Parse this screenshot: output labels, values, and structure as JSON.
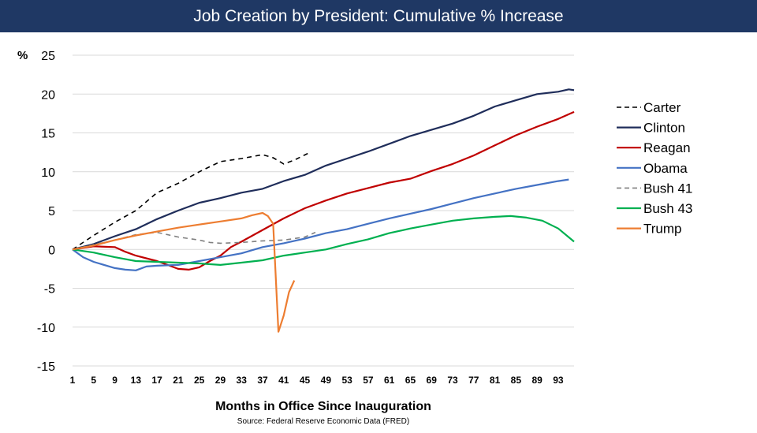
{
  "chart_data": {
    "type": "line",
    "title": "Job Creation by President:  Cumulative % Increase",
    "xlabel": "Months in Office Since Inauguration",
    "ylabel": "%",
    "source": "Source:  Federal Reserve Economic Data (FRED)",
    "xlim": [
      1,
      96
    ],
    "ylim": [
      -15,
      25
    ],
    "x_ticks": [
      "1",
      "5",
      "9",
      "13",
      "17",
      "21",
      "25",
      "29",
      "33",
      "37",
      "41",
      "45",
      "49",
      "53",
      "57",
      "61",
      "65",
      "69",
      "73",
      "77",
      "81",
      "85",
      "89",
      "93"
    ],
    "y_ticks": [
      "25",
      "20",
      "15",
      "10",
      "5",
      "0",
      "-5",
      "-10",
      "-15"
    ],
    "y_tick_values": [
      25,
      20,
      15,
      10,
      5,
      0,
      -5,
      -10,
      -15
    ],
    "grid": true,
    "legend_position": "right",
    "series": [
      {
        "name": "Carter",
        "color": "#000000",
        "dash": true,
        "points": [
          [
            1,
            0
          ],
          [
            5,
            1.8
          ],
          [
            9,
            3.5
          ],
          [
            13,
            5.0
          ],
          [
            17,
            7.3
          ],
          [
            21,
            8.5
          ],
          [
            25,
            10.0
          ],
          [
            29,
            11.3
          ],
          [
            33,
            11.7
          ],
          [
            37,
            12.2
          ],
          [
            39,
            11.8
          ],
          [
            41,
            11.0
          ],
          [
            43,
            11.5
          ],
          [
            46,
            12.5
          ]
        ]
      },
      {
        "name": "Clinton",
        "color": "#1f2d5a",
        "dash": false,
        "points": [
          [
            1,
            0
          ],
          [
            5,
            0.7
          ],
          [
            9,
            1.7
          ],
          [
            13,
            2.6
          ],
          [
            17,
            3.9
          ],
          [
            21,
            5.0
          ],
          [
            25,
            6.0
          ],
          [
            29,
            6.6
          ],
          [
            33,
            7.3
          ],
          [
            37,
            7.8
          ],
          [
            41,
            8.8
          ],
          [
            45,
            9.6
          ],
          [
            49,
            10.8
          ],
          [
            53,
            11.7
          ],
          [
            57,
            12.6
          ],
          [
            61,
            13.6
          ],
          [
            65,
            14.6
          ],
          [
            69,
            15.4
          ],
          [
            73,
            16.2
          ],
          [
            77,
            17.2
          ],
          [
            81,
            18.4
          ],
          [
            85,
            19.2
          ],
          [
            89,
            20.0
          ],
          [
            93,
            20.3
          ],
          [
            95,
            20.6
          ],
          [
            96,
            20.5
          ]
        ]
      },
      {
        "name": "Reagan",
        "color": "#c00000",
        "dash": false,
        "points": [
          [
            1,
            0
          ],
          [
            5,
            0.4
          ],
          [
            9,
            0.3
          ],
          [
            11,
            -0.3
          ],
          [
            13,
            -0.8
          ],
          [
            17,
            -1.5
          ],
          [
            19,
            -2.0
          ],
          [
            21,
            -2.5
          ],
          [
            23,
            -2.6
          ],
          [
            25,
            -2.3
          ],
          [
            27,
            -1.5
          ],
          [
            29,
            -0.8
          ],
          [
            31,
            0.3
          ],
          [
            33,
            1.0
          ],
          [
            37,
            2.5
          ],
          [
            41,
            4.0
          ],
          [
            45,
            5.3
          ],
          [
            49,
            6.3
          ],
          [
            53,
            7.2
          ],
          [
            57,
            7.9
          ],
          [
            61,
            8.6
          ],
          [
            65,
            9.1
          ],
          [
            69,
            10.1
          ],
          [
            73,
            11.0
          ],
          [
            77,
            12.1
          ],
          [
            81,
            13.4
          ],
          [
            85,
            14.7
          ],
          [
            89,
            15.8
          ],
          [
            93,
            16.8
          ],
          [
            96,
            17.7
          ]
        ]
      },
      {
        "name": "Obama",
        "color": "#4472c4",
        "dash": false,
        "points": [
          [
            1,
            0
          ],
          [
            3,
            -1.0
          ],
          [
            5,
            -1.6
          ],
          [
            9,
            -2.4
          ],
          [
            11,
            -2.6
          ],
          [
            13,
            -2.7
          ],
          [
            15,
            -2.2
          ],
          [
            17,
            -2.1
          ],
          [
            21,
            -2.0
          ],
          [
            25,
            -1.5
          ],
          [
            29,
            -1.0
          ],
          [
            33,
            -0.5
          ],
          [
            37,
            0.3
          ],
          [
            41,
            0.8
          ],
          [
            45,
            1.4
          ],
          [
            49,
            2.1
          ],
          [
            53,
            2.6
          ],
          [
            57,
            3.3
          ],
          [
            61,
            4.0
          ],
          [
            65,
            4.6
          ],
          [
            69,
            5.2
          ],
          [
            73,
            5.9
          ],
          [
            77,
            6.6
          ],
          [
            81,
            7.2
          ],
          [
            85,
            7.8
          ],
          [
            89,
            8.3
          ],
          [
            93,
            8.8
          ],
          [
            95,
            9.0
          ]
        ]
      },
      {
        "name": "Bush 41",
        "color": "#808080",
        "dash": true,
        "points": [
          [
            1,
            0
          ],
          [
            5,
            0.6
          ],
          [
            9,
            1.2
          ],
          [
            13,
            1.9
          ],
          [
            17,
            2.2
          ],
          [
            21,
            1.6
          ],
          [
            25,
            1.2
          ],
          [
            27,
            0.9
          ],
          [
            29,
            0.8
          ],
          [
            33,
            0.9
          ],
          [
            37,
            1.1
          ],
          [
            41,
            1.2
          ],
          [
            45,
            1.6
          ],
          [
            47,
            2.2
          ]
        ]
      },
      {
        "name": "Bush 43",
        "color": "#00b050",
        "dash": false,
        "points": [
          [
            1,
            0
          ],
          [
            5,
            -0.4
          ],
          [
            9,
            -1.0
          ],
          [
            13,
            -1.5
          ],
          [
            17,
            -1.6
          ],
          [
            21,
            -1.7
          ],
          [
            25,
            -1.8
          ],
          [
            29,
            -2.0
          ],
          [
            33,
            -1.7
          ],
          [
            37,
            -1.4
          ],
          [
            41,
            -0.8
          ],
          [
            45,
            -0.4
          ],
          [
            49,
            0.0
          ],
          [
            53,
            0.7
          ],
          [
            57,
            1.3
          ],
          [
            61,
            2.1
          ],
          [
            65,
            2.7
          ],
          [
            69,
            3.2
          ],
          [
            73,
            3.7
          ],
          [
            77,
            4.0
          ],
          [
            81,
            4.2
          ],
          [
            84,
            4.3
          ],
          [
            87,
            4.1
          ],
          [
            90,
            3.7
          ],
          [
            93,
            2.7
          ],
          [
            96,
            1.0
          ]
        ]
      },
      {
        "name": "Trump",
        "color": "#ed7d31",
        "dash": false,
        "points": [
          [
            1,
            0
          ],
          [
            5,
            0.5
          ],
          [
            9,
            1.2
          ],
          [
            13,
            1.8
          ],
          [
            17,
            2.3
          ],
          [
            21,
            2.8
          ],
          [
            25,
            3.2
          ],
          [
            29,
            3.6
          ],
          [
            33,
            4.0
          ],
          [
            35,
            4.4
          ],
          [
            37,
            4.7
          ],
          [
            38,
            4.3
          ],
          [
            39,
            3.3
          ],
          [
            40,
            -10.6
          ],
          [
            41,
            -8.5
          ],
          [
            42,
            -5.5
          ],
          [
            43,
            -4.0
          ]
        ]
      }
    ]
  }
}
